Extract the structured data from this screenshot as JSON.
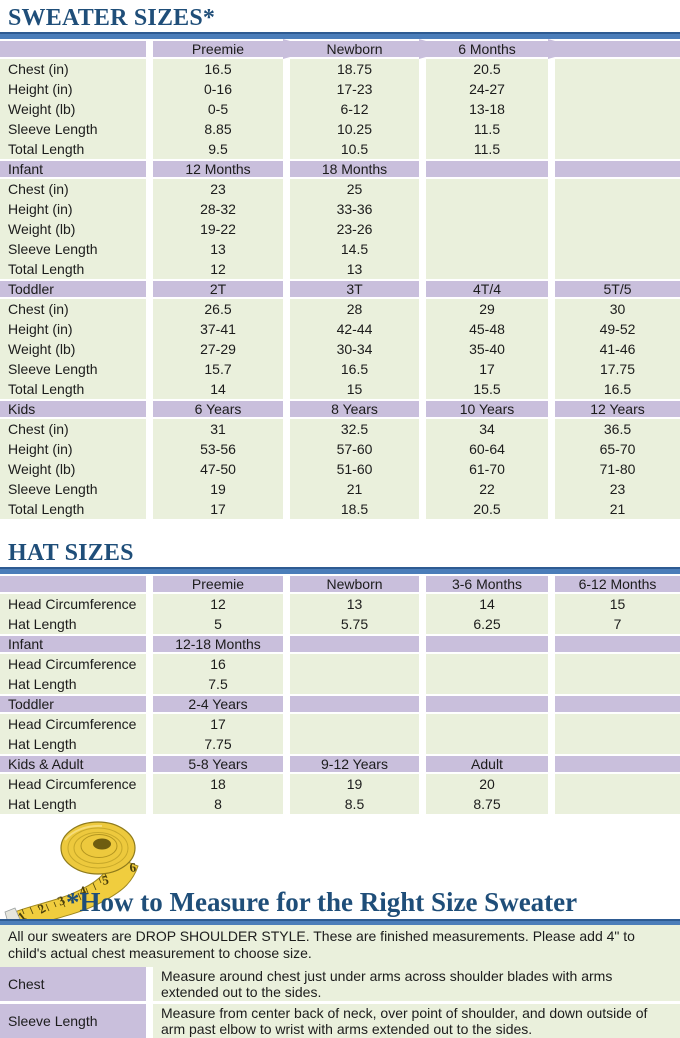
{
  "page": {
    "sweater_title": "SWEATER SIZES*",
    "hat_title": "HAT SIZES",
    "measure_title": "*How to Measure for the Right Size Sweater"
  },
  "colors": {
    "heading_blue": "#1f4e79",
    "rule_blue": "#4b7db9",
    "rule_edge_blue": "#2e5b92",
    "band_purple": "#c9bfdc",
    "row_green": "#eaf0dc",
    "tape_yellow": "#edc93d"
  },
  "sweater_table": {
    "rows": [
      {
        "type": "header",
        "merged": true,
        "cells": [
          "",
          "Preemie",
          "Newborn",
          "6 Months",
          ""
        ]
      },
      {
        "type": "data",
        "cells": [
          "Chest (in)",
          "16.5",
          "18.75",
          "20.5",
          ""
        ]
      },
      {
        "type": "data",
        "cells": [
          "Height (in)",
          "0-16",
          "17-23",
          "24-27",
          ""
        ]
      },
      {
        "type": "data",
        "cells": [
          "Weight (lb)",
          "0-5",
          "6-12",
          "13-18",
          ""
        ]
      },
      {
        "type": "data",
        "cells": [
          "Sleeve Length",
          "8.85",
          "10.25",
          "11.5",
          ""
        ]
      },
      {
        "type": "data",
        "cells": [
          "Total Length",
          "9.5",
          "10.5",
          "11.5",
          ""
        ]
      },
      {
        "type": "section",
        "cells": [
          "Infant",
          "12 Months",
          "18 Months",
          "",
          ""
        ]
      },
      {
        "type": "data",
        "cells": [
          "Chest (in)",
          "23",
          "25",
          "",
          ""
        ]
      },
      {
        "type": "data",
        "cells": [
          "Height (in)",
          "28-32",
          "33-36",
          "",
          ""
        ]
      },
      {
        "type": "data",
        "cells": [
          "Weight (lb)",
          "19-22",
          "23-26",
          "",
          ""
        ]
      },
      {
        "type": "data",
        "cells": [
          "Sleeve Length",
          "13",
          "14.5",
          "",
          ""
        ]
      },
      {
        "type": "data",
        "cells": [
          "Total Length",
          "12",
          "13",
          "",
          ""
        ]
      },
      {
        "type": "section",
        "cells": [
          "Toddler",
          "2T",
          "3T",
          "4T/4",
          "5T/5"
        ]
      },
      {
        "type": "data",
        "cells": [
          "Chest (in)",
          "26.5",
          "28",
          "29",
          "30"
        ]
      },
      {
        "type": "data",
        "cells": [
          "Height (in)",
          "37-41",
          "42-44",
          "45-48",
          "49-52"
        ]
      },
      {
        "type": "data",
        "cells": [
          "Weight (lb)",
          "27-29",
          "30-34",
          "35-40",
          "41-46"
        ]
      },
      {
        "type": "data",
        "cells": [
          "Sleeve Length",
          "15.7",
          "16.5",
          "17",
          "17.75"
        ]
      },
      {
        "type": "data",
        "cells": [
          "Total Length",
          "14",
          "15",
          "15.5",
          "16.5"
        ]
      },
      {
        "type": "section",
        "cells": [
          "Kids",
          "6 Years",
          "8 Years",
          "10 Years",
          "12 Years"
        ]
      },
      {
        "type": "data",
        "cells": [
          "Chest (in)",
          "31",
          "32.5",
          "34",
          "36.5"
        ]
      },
      {
        "type": "data",
        "cells": [
          "Height (in)",
          "53-56",
          "57-60",
          "60-64",
          "65-70"
        ]
      },
      {
        "type": "data",
        "cells": [
          "Weight (lb)",
          "47-50",
          "51-60",
          "61-70",
          "71-80"
        ]
      },
      {
        "type": "data",
        "cells": [
          "Sleeve Length",
          "19",
          "21",
          "22",
          "23"
        ]
      },
      {
        "type": "data",
        "cells": [
          "Total Length",
          "17",
          "18.5",
          "20.5",
          "21"
        ]
      }
    ]
  },
  "hat_table": {
    "rows": [
      {
        "type": "header",
        "cells": [
          "",
          "Preemie",
          "Newborn",
          "3-6 Months",
          "6-12 Months"
        ]
      },
      {
        "type": "data",
        "cells": [
          "Head Circumference",
          "12",
          "13",
          "14",
          "15"
        ]
      },
      {
        "type": "data",
        "cells": [
          "Hat Length",
          "5",
          "5.75",
          "6.25",
          "7"
        ]
      },
      {
        "type": "section",
        "cells": [
          "Infant",
          "12-18 Months",
          "",
          "",
          ""
        ]
      },
      {
        "type": "data",
        "cells": [
          "Head Circumference",
          "16",
          "",
          "",
          ""
        ]
      },
      {
        "type": "data",
        "cells": [
          "Hat Length",
          "7.5",
          "",
          "",
          ""
        ]
      },
      {
        "type": "section",
        "cells": [
          "Toddler",
          "2-4 Years",
          "",
          "",
          ""
        ]
      },
      {
        "type": "data",
        "cells": [
          "Head Circumference",
          "17",
          "",
          "",
          ""
        ]
      },
      {
        "type": "data",
        "cells": [
          "Hat Length",
          "7.75",
          "",
          "",
          ""
        ]
      },
      {
        "type": "section",
        "cells": [
          "Kids & Adult",
          "5-8 Years",
          "9-12 Years",
          "Adult",
          ""
        ]
      },
      {
        "type": "data",
        "cells": [
          "Head Circumference",
          "18",
          "19",
          "20",
          ""
        ]
      },
      {
        "type": "data",
        "cells": [
          "Hat Length",
          "8",
          "8.5",
          "8.75",
          ""
        ]
      }
    ]
  },
  "measure": {
    "intro": "All our sweaters are DROP SHOULDER STYLE.  These are finished measurements.  Please add 4\" to child's actual chest measurement to choose size.",
    "rows": [
      {
        "label": "Chest",
        "text": "Measure around chest just under arms across shoulder blades with arms extended out to the sides."
      },
      {
        "label": "Sleeve Length",
        "text": "Measure from center back of neck, over point of shoulder, and down outside of arm past elbow to wrist with arms extended out to the sides."
      }
    ]
  },
  "tape": {
    "numbers": [
      "1",
      "2",
      "3",
      "4",
      "5",
      "6"
    ]
  }
}
